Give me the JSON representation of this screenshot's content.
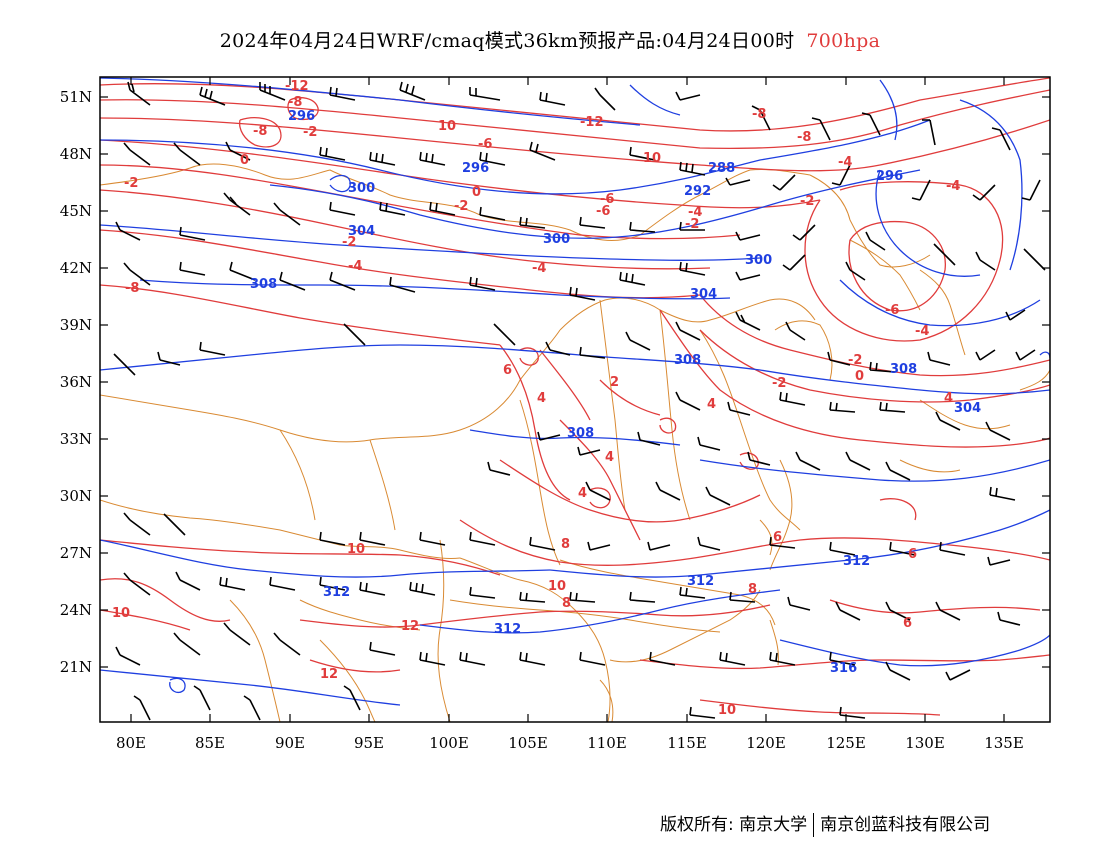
{
  "title": {
    "main": "2024年04月24日WRF/cmaq模式36km预报产品:04月24日00时",
    "level": "700hpa"
  },
  "axes": {
    "lon_ticks": [
      "80E",
      "85E",
      "90E",
      "95E",
      "100E",
      "105E",
      "110E",
      "115E",
      "120E",
      "125E",
      "130E",
      "135E"
    ],
    "lat_ticks": [
      "51N",
      "48N",
      "45N",
      "42N",
      "39N",
      "36N",
      "33N",
      "30N",
      "27N",
      "24N",
      "21N"
    ]
  },
  "colors": {
    "temperature": "#e03c3c",
    "height": "#1f3fe0",
    "border": "#d98a33",
    "wind": "#000000"
  },
  "height_labels": [
    "296",
    "300",
    "304",
    "308",
    "288",
    "292",
    "296",
    "300",
    "304",
    "308",
    "296",
    "300",
    "304",
    "308",
    "308",
    "312",
    "312",
    "312",
    "312",
    "316"
  ],
  "temp_labels": [
    "-12",
    "-8",
    "-8",
    "-2",
    "0",
    "-2",
    "-2",
    "-4",
    "-8",
    "10",
    "-6",
    "0",
    "-2",
    "-4",
    "-12",
    "10",
    "-8",
    "-8",
    "-6",
    "-4",
    "-6",
    "-2",
    "-4",
    "-4",
    "-6",
    "-4",
    "-2",
    "0",
    "-2",
    "-2",
    "4",
    "6",
    "4",
    "2",
    "4",
    "4",
    "4",
    "6",
    "8",
    "10",
    "10",
    "12",
    "12",
    "10",
    "6",
    "8",
    "8",
    "6",
    "10"
  ],
  "footer": {
    "left": "版权所有: 南京大学",
    "right": "南京创蓝科技有限公司"
  }
}
